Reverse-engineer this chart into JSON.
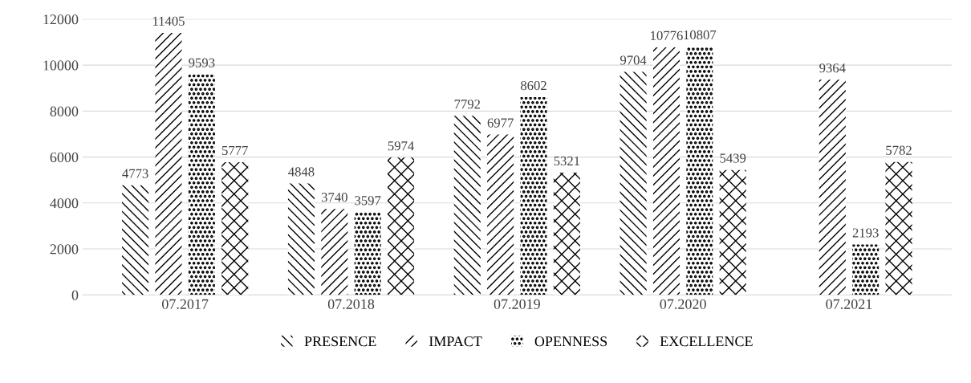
{
  "chart_data": {
    "type": "bar",
    "categories": [
      "07.2017",
      "07.2018",
      "07.2019",
      "07.2020",
      "07.2021"
    ],
    "series": [
      {
        "name": "PRESENCE",
        "color": "#000000",
        "values": [
          4773,
          4848,
          7792,
          9704,
          null
        ]
      },
      {
        "name": "IMPACT",
        "color": "#000000",
        "values": [
          11405,
          3740,
          6977,
          10776,
          9364
        ]
      },
      {
        "name": "OPENNESS",
        "color": "#000000",
        "values": [
          9593,
          3597,
          8602,
          10807,
          2193
        ]
      },
      {
        "name": "EXCELLENCE",
        "color": "#000000",
        "values": [
          5777,
          5974,
          5321,
          5439,
          5782
        ]
      }
    ],
    "ylim": [
      0,
      12000
    ],
    "yticks": [
      0,
      2000,
      4000,
      6000,
      8000,
      10000,
      12000
    ],
    "grid": "y",
    "legend": "bottom",
    "data_labels": true
  }
}
